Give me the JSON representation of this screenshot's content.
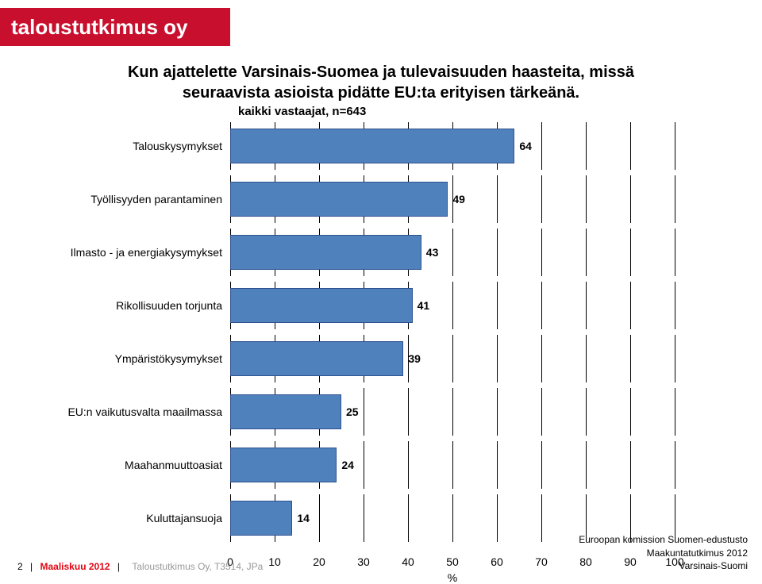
{
  "logo": "taloustutkimus oy",
  "title_line1": "Kun ajattelette Varsinais-Suomea ja tulevaisuuden haasteita, missä",
  "title_line2": "seuraavista asioista pidätte EU:ta erityisen tärkeänä.",
  "subtitle": "kaikki vastaajat, n=643",
  "chart": {
    "type": "bar",
    "xlim": [
      0,
      100
    ],
    "xtick_step": 10,
    "xticks": [
      0,
      10,
      20,
      30,
      40,
      50,
      60,
      70,
      80,
      90,
      100
    ],
    "xlabel": "%",
    "bar_color": "#4f81bd",
    "bar_border_color": "#2f528f",
    "grid_color": "#000000",
    "background_color": "#ffffff",
    "label_fontsize": 14,
    "value_fontsize": 14,
    "categories": [
      {
        "label": "Talouskysymykset",
        "value": 64
      },
      {
        "label": "Työllisyyden parantaminen",
        "value": 49
      },
      {
        "label": "Ilmasto - ja energiakysymykset",
        "value": 43
      },
      {
        "label": "Rikollisuuden torjunta",
        "value": 41
      },
      {
        "label": "Ympäristökysymykset",
        "value": 39
      },
      {
        "label": "EU:n vaikutusvalta maailmassa",
        "value": 25
      },
      {
        "label": "Maahanmuuttoasiat",
        "value": 24
      },
      {
        "label": "Kuluttajansuoja",
        "value": 14
      }
    ]
  },
  "footer": {
    "page_number": "2",
    "date": "Maaliskuu 2012",
    "source": "Taloustutkimus Oy, T3514, JPa",
    "right1": "Euroopan komission Suomen-edustusto",
    "right2": "Maakuntatutkimus 2012",
    "right3": "Varsinais-Suomi"
  }
}
